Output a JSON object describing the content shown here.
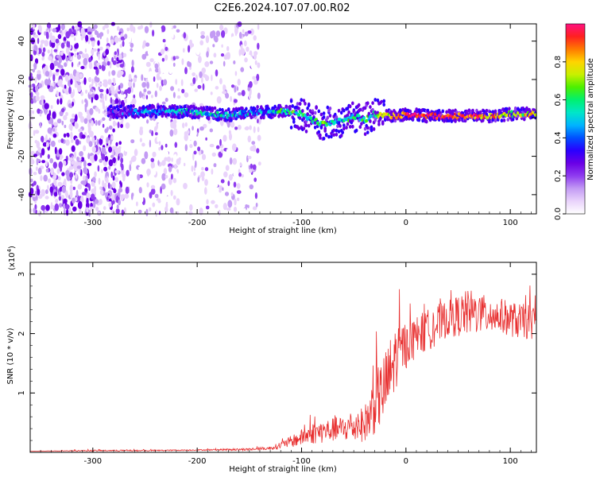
{
  "title": "C2E6.2024.107.07.00.R02",
  "chart_data": [
    {
      "type": "heatmap",
      "title": "",
      "xlabel": "Height of straight line (km)",
      "ylabel": "Frequency (Hz)",
      "xlim": [
        -360,
        125
      ],
      "ylim": [
        -50,
        49
      ],
      "xticks": [
        -300,
        -200,
        -100,
        0,
        100
      ],
      "xtick_labels": [
        "-300",
        "-200",
        "-100",
        "0",
        "100"
      ],
      "yticks": [
        -40,
        -20,
        0,
        20,
        40
      ],
      "ytick_labels": [
        "-40",
        "-20",
        "0",
        "20",
        "40"
      ],
      "colorbar": {
        "label": "Normalized spectral amplitude",
        "range": [
          0,
          1
        ],
        "ticks": [
          0.0,
          0.2,
          0.4,
          0.6,
          0.8
        ],
        "tick_labels": [
          "0.0",
          "0.2",
          "0.4",
          "0.6",
          "0.8"
        ],
        "colormap": [
          "#ffffff",
          "#e9d3fb",
          "#c39bf4",
          "#8f3cef",
          "#6a00e6",
          "#2a00ff",
          "#0050ff",
          "#00b4ff",
          "#00e6c8",
          "#00f070",
          "#4cf000",
          "#c8f000",
          "#ffd400",
          "#ff7a00",
          "#ff2020",
          "#ff1080"
        ]
      },
      "ridge": {
        "description": "Strong spectral ridge near 0 Hz",
        "x": [
          -280,
          -250,
          -200,
          -170,
          -140,
          -120,
          -100,
          -90,
          -80,
          -70,
          -60,
          -50,
          -40,
          -30,
          -20,
          -10,
          0,
          20,
          40,
          60,
          80,
          100,
          125
        ],
        "y": [
          3,
          3.5,
          3,
          1.5,
          3,
          3.5,
          2,
          -1,
          -3,
          -2,
          -2,
          1,
          -1,
          2,
          1,
          1,
          2,
          1,
          1,
          1,
          1,
          2,
          2
        ],
        "amplitude": [
          0.3,
          0.42,
          0.48,
          0.52,
          0.45,
          0.55,
          0.6,
          0.52,
          0.62,
          0.55,
          0.5,
          0.58,
          0.55,
          0.5,
          0.8,
          0.75,
          0.92,
          0.95,
          0.93,
          0.9,
          0.85,
          0.7,
          0.78
        ]
      },
      "noise_regions": [
        {
          "x": [
            -360,
            -270
          ],
          "y": [
            -50,
            49
          ],
          "amplitude": [
            0.05,
            0.3
          ]
        },
        {
          "x": [
            -270,
            -140
          ],
          "y": [
            -50,
            49
          ],
          "amplitude": [
            0.02,
            0.22
          ]
        }
      ]
    },
    {
      "type": "line",
      "title": "",
      "xlabel": "Height of straight line (km)",
      "ylabel": "SNR (10 * v/v)",
      "yscale_label": "(x10",
      "yscale_exp": "4",
      "yscale_close": ")",
      "xlim": [
        -360,
        125
      ],
      "ylim": [
        0,
        3.2
      ],
      "xticks": [
        -300,
        -200,
        -100,
        0,
        100
      ],
      "xtick_labels": [
        "-300",
        "-200",
        "-100",
        "0",
        "100"
      ],
      "yticks": [
        1,
        2,
        3
      ],
      "ytick_labels": [
        "1",
        "2",
        "3"
      ],
      "series": [
        {
          "name": "SNR",
          "color": "#e83030",
          "x": [
            -360,
            -300,
            -250,
            -200,
            -150,
            -130,
            -120,
            -110,
            -100,
            -90,
            -80,
            -70,
            -60,
            -50,
            -40,
            -35,
            -30,
            -25,
            -20,
            -15,
            -10,
            -5,
            0,
            10,
            20,
            30,
            40,
            50,
            60,
            70,
            80,
            90,
            100,
            110,
            120,
            125
          ],
          "values": [
            0.02,
            0.03,
            0.03,
            0.04,
            0.05,
            0.07,
            0.12,
            0.18,
            0.25,
            0.32,
            0.35,
            0.38,
            0.4,
            0.42,
            0.48,
            0.6,
            0.85,
            0.95,
            1.1,
            1.3,
            1.6,
            1.75,
            1.8,
            1.95,
            2.05,
            2.15,
            2.25,
            2.3,
            2.35,
            2.35,
            2.3,
            2.3,
            2.25,
            2.2,
            2.2,
            2.15
          ],
          "jitter": [
            0.0,
            0.01,
            0.01,
            0.01,
            0.02,
            0.03,
            0.06,
            0.1,
            0.14,
            0.18,
            0.2,
            0.2,
            0.22,
            0.25,
            0.3,
            0.4,
            0.55,
            0.55,
            0.6,
            0.65,
            0.55,
            0.45,
            0.4,
            0.35,
            0.35,
            0.35,
            0.3,
            0.35,
            0.4,
            0.35,
            0.3,
            0.3,
            0.3,
            0.3,
            0.3,
            0.3
          ]
        }
      ]
    }
  ]
}
